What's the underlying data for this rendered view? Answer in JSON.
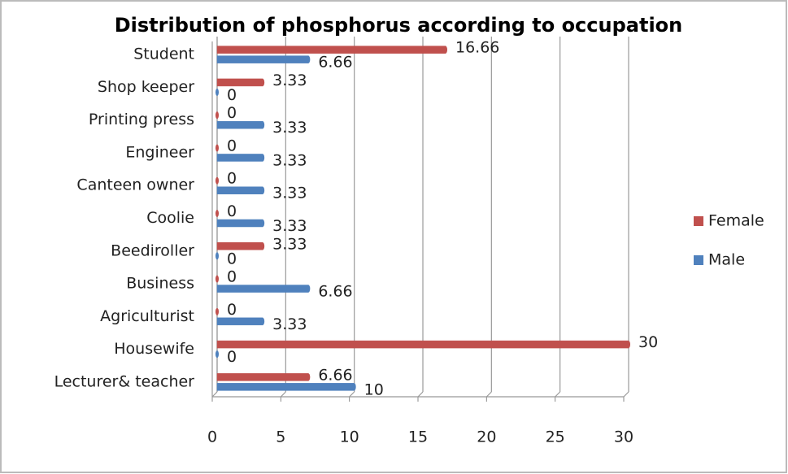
{
  "chart_data": {
    "type": "bar",
    "orientation": "horizontal",
    "title": "Distribution of phosphorus  according to occupation",
    "categories": [
      "Student",
      "Shop keeper",
      "Printing press",
      "Engineer",
      "Canteen owner",
      "Coolie",
      "Beediroller",
      "Business",
      "Agriculturist",
      "Housewife",
      "Lecturer& teacher"
    ],
    "series": [
      {
        "name": "Female",
        "color": "#c0504d",
        "values": [
          16.66,
          3.33,
          0,
          0,
          0,
          0,
          3.33,
          0,
          0,
          30,
          6.66
        ]
      },
      {
        "name": "Male",
        "color": "#4f81bd",
        "values": [
          6.66,
          0,
          3.33,
          3.33,
          3.33,
          3.33,
          0,
          6.66,
          3.33,
          0,
          10
        ]
      }
    ],
    "xlim": [
      0,
      30
    ],
    "xticks": [
      0,
      5,
      10,
      15,
      20,
      25,
      30
    ],
    "grid": true,
    "legend": "right"
  }
}
